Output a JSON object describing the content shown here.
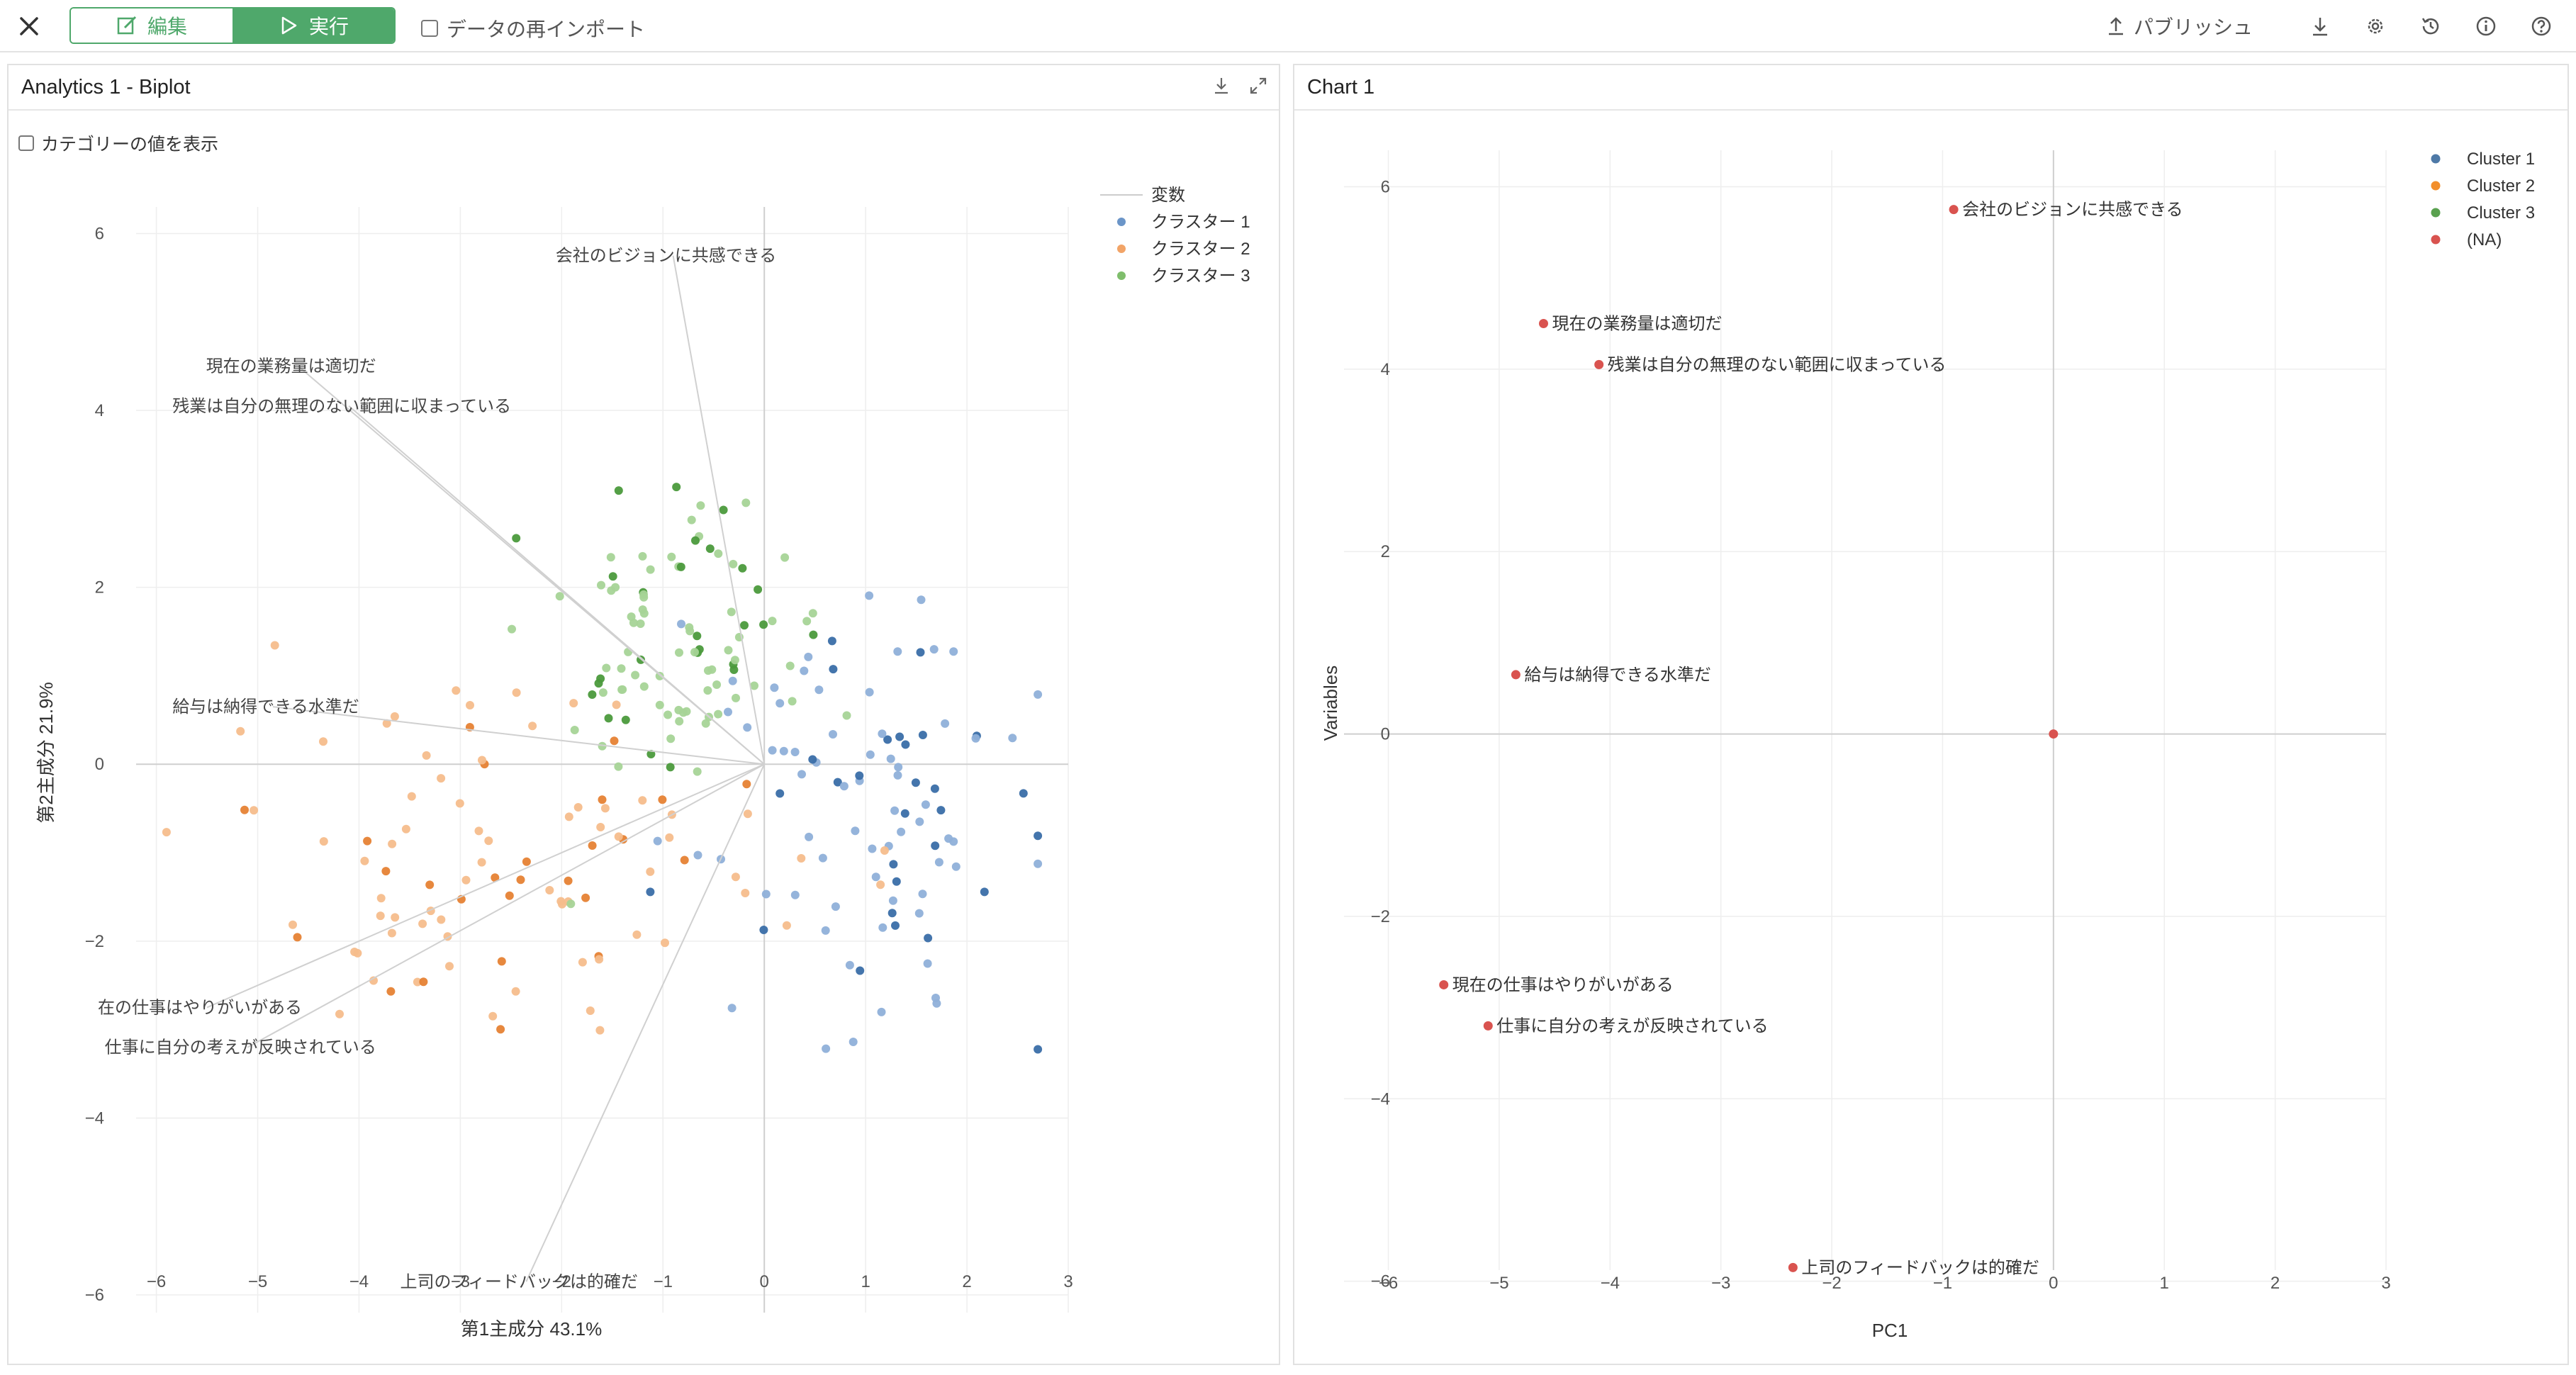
{
  "toolbar": {
    "edit_label": "編集",
    "run_label": "実行",
    "reimport_label": "データの再インポート",
    "publish_label": "パブリッシュ",
    "accent_color": "#4fa86b"
  },
  "biplot_panel": {
    "title": "Analytics 1 - Biplot",
    "category_toggle_label": "カテゴリーの値を表示"
  },
  "chart_panel": {
    "title": "Chart 1"
  },
  "chart_data": [
    {
      "type": "scatter",
      "subtype": "biplot",
      "xlabel": "第1主成分 43.1%",
      "ylabel": "第2主成分 21.9%",
      "xlim": [
        -6.2,
        3.0
      ],
      "ylim": [
        -6.2,
        6.3
      ],
      "xticks": [
        -6,
        -5,
        -4,
        -3,
        -2,
        -1,
        0,
        1,
        2,
        3
      ],
      "yticks": [
        -6,
        -4,
        -2,
        0,
        2,
        4,
        6
      ],
      "grid": true,
      "legend_position": "top-right",
      "legend": {
        "variable_label": "変数",
        "entries": [
          {
            "name": "クラスター 1",
            "color": "#6b95c8"
          },
          {
            "name": "クラスター 2",
            "color": "#f2a467"
          },
          {
            "name": "クラスター 3",
            "color": "#7fbe6c"
          }
        ]
      },
      "variables": [
        {
          "name": "会社のビジョンに共感できる",
          "x": -0.9,
          "y": 5.75
        },
        {
          "name": "現在の業務量は適切だ",
          "x": -4.6,
          "y": 4.5
        },
        {
          "name": "残業は自分の無理のない範囲に収まっている",
          "x": -4.1,
          "y": 4.05
        },
        {
          "name": "給与は納得できる水準だ",
          "x": -4.85,
          "y": 0.65
        },
        {
          "name": "在の仕事はやりがいがある",
          "x": -5.5,
          "y": -2.75
        },
        {
          "name": "仕事に自分の考えが反映されている",
          "x": -5.1,
          "y": -3.2
        },
        {
          "name": "上司のフィードバックは的確だ",
          "x": -2.35,
          "y": -5.85
        }
      ],
      "cluster_centers": [
        {
          "cluster": "クラスター 1",
          "cx": 1.1,
          "cy": -0.55,
          "sx": 0.85,
          "sy": 1.15
        },
        {
          "cluster": "クラスター 2",
          "cx": -2.9,
          "cy": -1.0,
          "sx": 1.45,
          "sy": 1.1
        },
        {
          "cluster": "クラスター 3",
          "cx": -0.8,
          "cy": 1.35,
          "sx": 0.75,
          "sy": 0.85
        }
      ],
      "points_per_cluster": 95
    },
    {
      "type": "scatter",
      "xlabel": "PC1",
      "ylabel": "Variables",
      "xlim": [
        -6.4,
        3.0
      ],
      "ylim": [
        -6.5,
        6.4
      ],
      "xticks": [
        -6,
        -5,
        -4,
        -3,
        -2,
        -1,
        0,
        1,
        2,
        3
      ],
      "yticks": [
        -6,
        -4,
        -2,
        0,
        2,
        4,
        6
      ],
      "grid": true,
      "legend_position": "top-right",
      "legend": [
        {
          "name": "Cluster 1",
          "color": "#4e79a7"
        },
        {
          "name": "Cluster 2",
          "color": "#f28e2b"
        },
        {
          "name": "Cluster 3",
          "color": "#59a14f"
        },
        {
          "name": "(NA)",
          "color": "#d9534f"
        }
      ],
      "points": [
        {
          "label": "会社のビジョンに共感できる",
          "x": -0.9,
          "y": 5.75
        },
        {
          "label": "現在の業務量は適切だ",
          "x": -4.6,
          "y": 4.5
        },
        {
          "label": "残業は自分の無理のない範囲に収まっている",
          "x": -4.1,
          "y": 4.05
        },
        {
          "label": "給与は納得できる水準だ",
          "x": -4.85,
          "y": 0.65
        },
        {
          "label": "現在の仕事はやりがいがある",
          "x": -5.5,
          "y": -2.75
        },
        {
          "label": "仕事に自分の考えが反映されている",
          "x": -5.1,
          "y": -3.2
        },
        {
          "label": "上司のフィードバックは的確だ",
          "x": -2.35,
          "y": -5.85
        },
        {
          "label": "",
          "x": 0.0,
          "y": 0.0
        }
      ]
    }
  ]
}
